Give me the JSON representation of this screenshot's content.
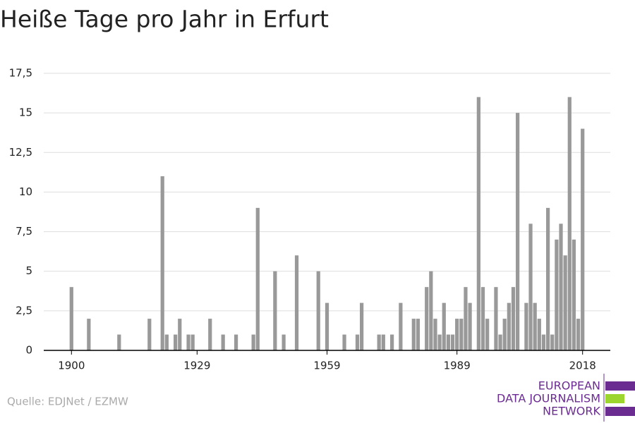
{
  "chart_data": {
    "type": "bar",
    "title": "Heiße Tage pro Jahr in Erfurt",
    "x": [
      1900,
      1904,
      1911,
      1918,
      1921,
      1922,
      1924,
      1925,
      1927,
      1928,
      1932,
      1935,
      1938,
      1942,
      1943,
      1947,
      1949,
      1952,
      1957,
      1959,
      1963,
      1966,
      1967,
      1971,
      1972,
      1974,
      1976,
      1979,
      1980,
      1982,
      1983,
      1984,
      1985,
      1986,
      1987,
      1988,
      1989,
      1990,
      1991,
      1992,
      1994,
      1995,
      1996,
      1998,
      1999,
      2000,
      2001,
      2002,
      2003,
      2005,
      2006,
      2007,
      2008,
      2009,
      2010,
      2011,
      2012,
      2013,
      2014,
      2015,
      2016,
      2017,
      2018
    ],
    "values": [
      4,
      2,
      1,
      2,
      11,
      1,
      1,
      2,
      1,
      1,
      2,
      1,
      1,
      1,
      9,
      5,
      1,
      6,
      5,
      3,
      1,
      1,
      3,
      1,
      1,
      1,
      3,
      2,
      2,
      4,
      5,
      2,
      1,
      3,
      1,
      1,
      2,
      2,
      4,
      3,
      16,
      4,
      2,
      4,
      1,
      2,
      3,
      4,
      15,
      3,
      8,
      3,
      2,
      1,
      9,
      1,
      7,
      8,
      6,
      16,
      7,
      2,
      14
    ],
    "color": "#999999",
    "xlim": [
      1893.6,
      2024.4
    ],
    "xticks": [
      1900,
      1929,
      1959,
      1989,
      2018
    ],
    "ylim": [
      0,
      17.5
    ],
    "yticks": [
      0,
      {
        "value": 2.5,
        "label": "2,5"
      },
      5,
      {
        "value": 7.5,
        "label": "7,5"
      },
      10,
      {
        "value": 12.5,
        "label": "12,5"
      },
      15,
      {
        "value": 17.5,
        "label": "17,5"
      }
    ],
    "grid": true,
    "source": "Quelle: EDJNet / EZMW",
    "logo": [
      "EUROPEAN",
      "DATA JOURNALISM",
      "NETWORK"
    ]
  }
}
